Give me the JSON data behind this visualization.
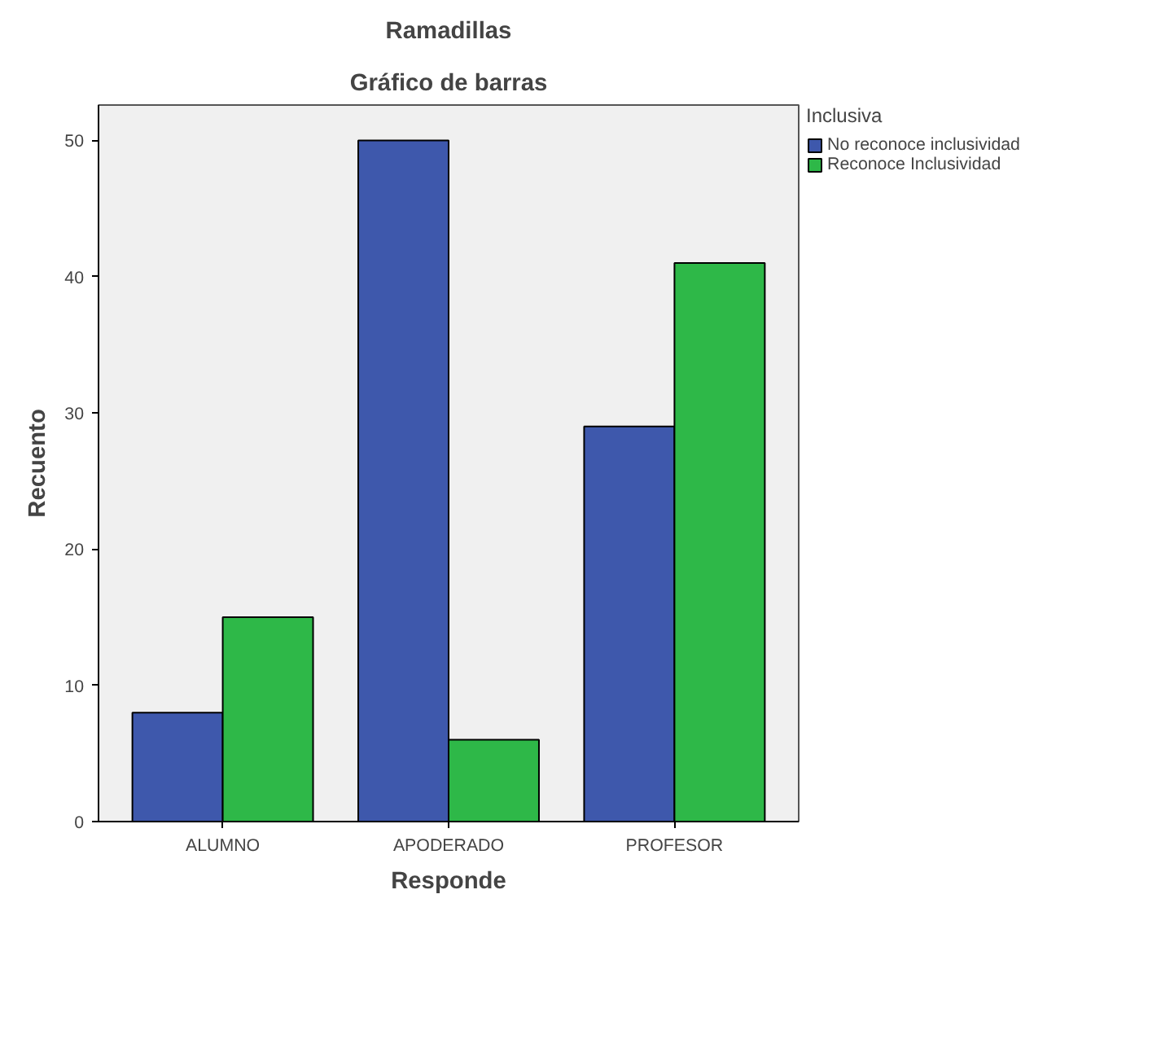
{
  "chart_data": {
    "type": "bar",
    "title": "Ramadillas",
    "subtitle": "Gráfico de barras",
    "xlabel": "Responde",
    "ylabel": "Recuento",
    "legend_title": "Inclusiva",
    "categories": [
      "ALUMNO",
      "APODERADO",
      "PROFESOR"
    ],
    "series": [
      {
        "name": "No reconoce inclusividad",
        "color": "#3e58ac",
        "values": [
          8,
          50,
          29
        ]
      },
      {
        "name": "Reconoce Inclusividad",
        "color": "#2eb848",
        "values": [
          15,
          6,
          41
        ]
      }
    ],
    "ylim": [
      0,
      52.6
    ],
    "yticks": [
      0,
      10,
      20,
      30,
      40,
      50
    ],
    "grid": false,
    "legend": "top right"
  }
}
